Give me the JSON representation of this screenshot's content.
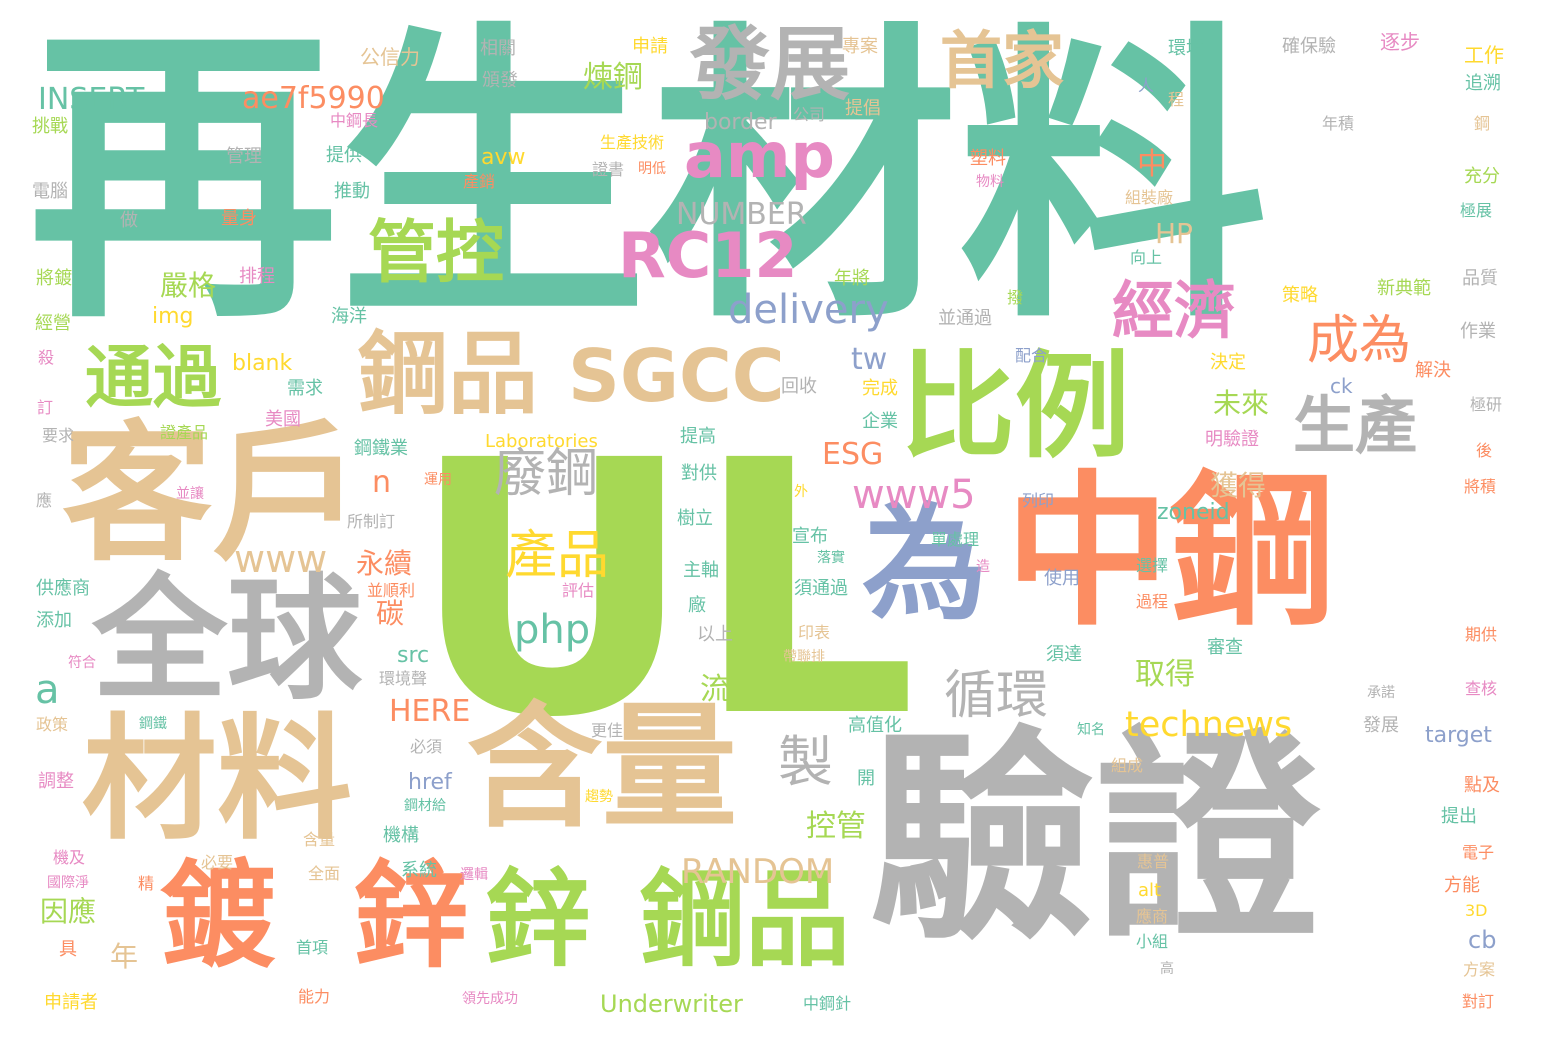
{
  "cloud": {
    "colors": {
      "teal": "#66c2a5",
      "green": "#a6d854",
      "gray": "#b3b3b3",
      "orange": "#fc8d62",
      "tan": "#e5c494",
      "blue": "#8da0cb",
      "pink": "#e78ac3",
      "yellow": "#ffd92f"
    },
    "words": [
      {
        "t": "再生材料",
        "c": "teal"
      },
      {
        "t": "UL",
        "c": "green"
      },
      {
        "t": "中鋼",
        "c": "orange"
      },
      {
        "t": "驗證",
        "c": "gray"
      },
      {
        "t": "客戶",
        "c": "tan"
      },
      {
        "t": "全球",
        "c": "gray"
      },
      {
        "t": "材料",
        "c": "tan"
      },
      {
        "t": "含量",
        "c": "tan"
      },
      {
        "t": "比例",
        "c": "green"
      },
      {
        "t": "為",
        "c": "blue"
      },
      {
        "t": "鍍",
        "c": "orange"
      },
      {
        "t": "鋅",
        "c": "orange"
      },
      {
        "t": "鋅",
        "c": "green"
      },
      {
        "t": "鋼品",
        "c": "green"
      },
      {
        "t": "鋼品",
        "c": "tan"
      },
      {
        "t": "SGCC",
        "c": "tan"
      },
      {
        "t": "發展",
        "c": "gray"
      },
      {
        "t": "首家",
        "c": "tan"
      },
      {
        "t": "amp",
        "c": "pink"
      },
      {
        "t": "RC12",
        "c": "pink"
      },
      {
        "t": "管控",
        "c": "green"
      },
      {
        "t": "通過",
        "c": "green"
      },
      {
        "t": "經濟",
        "c": "pink"
      },
      {
        "t": "生產",
        "c": "gray"
      },
      {
        "t": "成為",
        "c": "orange"
      },
      {
        "t": "製",
        "c": "gray"
      },
      {
        "t": "循環",
        "c": "gray"
      },
      {
        "t": "廢鋼",
        "c": "gray"
      },
      {
        "t": "產品",
        "c": "yellow"
      },
      {
        "t": "www5",
        "c": "pink"
      },
      {
        "t": "delivery",
        "c": "blue"
      },
      {
        "t": "technews",
        "c": "yellow"
      },
      {
        "t": "www",
        "c": "tan"
      },
      {
        "t": "php",
        "c": "teal"
      },
      {
        "t": "ae7f5990",
        "c": "orange"
      },
      {
        "t": "INSERT",
        "c": "teal"
      },
      {
        "t": "NUMBER",
        "c": "gray"
      },
      {
        "t": "RANDOM",
        "c": "tan"
      },
      {
        "t": "HERE",
        "c": "orange"
      },
      {
        "t": "Underwriter",
        "c": "green"
      },
      {
        "t": "Laboratories",
        "c": "yellow"
      },
      {
        "t": "a",
        "c": "teal"
      },
      {
        "t": "n",
        "c": "orange"
      },
      {
        "t": "tw",
        "c": "blue"
      },
      {
        "t": "ESG",
        "c": "orange"
      },
      {
        "t": "HP",
        "c": "tan"
      },
      {
        "t": "中",
        "c": "orange"
      },
      {
        "t": "煉鋼",
        "c": "green"
      },
      {
        "t": "嚴格",
        "c": "green"
      },
      {
        "t": "未來",
        "c": "green"
      },
      {
        "t": "獲得",
        "c": "tan"
      },
      {
        "t": "永續",
        "c": "orange"
      },
      {
        "t": "碳",
        "c": "orange"
      },
      {
        "t": "流程",
        "c": "green"
      },
      {
        "t": "取得",
        "c": "green"
      },
      {
        "t": "控管",
        "c": "green"
      },
      {
        "t": "因應",
        "c": "green"
      },
      {
        "t": "年",
        "c": "tan"
      },
      {
        "t": "cb",
        "c": "blue"
      },
      {
        "t": "zoneid",
        "c": "teal"
      },
      {
        "t": "target",
        "c": "blue"
      },
      {
        "t": "img",
        "c": "yellow"
      },
      {
        "t": "blank",
        "c": "yellow"
      },
      {
        "t": "avw",
        "c": "yellow"
      },
      {
        "t": "border",
        "c": "gray"
      },
      {
        "t": "src",
        "c": "teal"
      },
      {
        "t": "href",
        "c": "blue"
      },
      {
        "t": "alt",
        "c": "yellow"
      },
      {
        "t": "ck",
        "c": "blue"
      },
      {
        "t": "3D",
        "c": "yellow"
      },
      {
        "t": "公信力",
        "c": "tan"
      },
      {
        "t": "相關",
        "c": "gray"
      },
      {
        "t": "頒發",
        "c": "gray"
      },
      {
        "t": "申請",
        "c": "yellow"
      },
      {
        "t": "專案",
        "c": "tan"
      },
      {
        "t": "提倡",
        "c": "tan"
      },
      {
        "t": "公司",
        "c": "gray"
      },
      {
        "t": "中鋼長",
        "c": "pink"
      },
      {
        "t": "環境",
        "c": "teal"
      },
      {
        "t": "確保驗",
        "c": "gray"
      },
      {
        "t": "逐步",
        "c": "pink"
      },
      {
        "t": "工作",
        "c": "yellow"
      },
      {
        "t": "追溯",
        "c": "teal"
      },
      {
        "t": "人",
        "c": "blue"
      },
      {
        "t": "程",
        "c": "tan"
      },
      {
        "t": "年積",
        "c": "gray"
      },
      {
        "t": "鋼",
        "c": "tan"
      },
      {
        "t": "挑戰",
        "c": "green"
      },
      {
        "t": "管理",
        "c": "gray"
      },
      {
        "t": "提供",
        "c": "teal"
      },
      {
        "t": "生產技術",
        "c": "yellow"
      },
      {
        "t": "證書",
        "c": "gray"
      },
      {
        "t": "明低",
        "c": "orange"
      },
      {
        "t": "產銷",
        "c": "orange"
      },
      {
        "t": "塑料",
        "c": "orange"
      },
      {
        "t": "物料",
        "c": "pink"
      },
      {
        "t": "充分",
        "c": "green"
      },
      {
        "t": "電腦",
        "c": "gray"
      },
      {
        "t": "推動",
        "c": "teal"
      },
      {
        "t": "做",
        "c": "gray"
      },
      {
        "t": "量身",
        "c": "orange"
      },
      {
        "t": "組裝廠",
        "c": "tan"
      },
      {
        "t": "極展",
        "c": "teal"
      },
      {
        "t": "將鍍",
        "c": "green"
      },
      {
        "t": "排程",
        "c": "pink"
      },
      {
        "t": "年將",
        "c": "green"
      },
      {
        "t": "向上",
        "c": "teal"
      },
      {
        "t": "品質",
        "c": "gray"
      },
      {
        "t": "撥",
        "c": "green"
      },
      {
        "t": "策略",
        "c": "yellow"
      },
      {
        "t": "新典範",
        "c": "green"
      },
      {
        "t": "經營",
        "c": "green"
      },
      {
        "t": "海洋",
        "c": "teal"
      },
      {
        "t": "並通過",
        "c": "gray"
      },
      {
        "t": "作業",
        "c": "gray"
      },
      {
        "t": "殺",
        "c": "pink"
      },
      {
        "t": "配合",
        "c": "blue"
      },
      {
        "t": "需求",
        "c": "teal"
      },
      {
        "t": "決定",
        "c": "yellow"
      },
      {
        "t": "解決",
        "c": "orange"
      },
      {
        "t": "訂",
        "c": "pink"
      },
      {
        "t": "美國",
        "c": "pink"
      },
      {
        "t": "回收",
        "c": "gray"
      },
      {
        "t": "完成",
        "c": "yellow"
      },
      {
        "t": "極研",
        "c": "gray"
      },
      {
        "t": "要求",
        "c": "gray"
      },
      {
        "t": "證產品",
        "c": "green"
      },
      {
        "t": "鋼鐵業",
        "c": "teal"
      },
      {
        "t": "企業",
        "c": "teal"
      },
      {
        "t": "提高",
        "c": "teal"
      },
      {
        "t": "明驗證",
        "c": "pink"
      },
      {
        "t": "後",
        "c": "orange"
      },
      {
        "t": "應",
        "c": "gray"
      },
      {
        "t": "運用",
        "c": "orange"
      },
      {
        "t": "對供",
        "c": "teal"
      },
      {
        "t": "並讓",
        "c": "pink"
      },
      {
        "t": "外",
        "c": "yellow"
      },
      {
        "t": "將積",
        "c": "orange"
      },
      {
        "t": "所制訂",
        "c": "gray"
      },
      {
        "t": "樹立",
        "c": "teal"
      },
      {
        "t": "宣布",
        "c": "teal"
      },
      {
        "t": "單處理",
        "c": "teal"
      },
      {
        "t": "列印",
        "c": "blue"
      },
      {
        "t": "供應商",
        "c": "teal"
      },
      {
        "t": "並順利",
        "c": "orange"
      },
      {
        "t": "評估",
        "c": "pink"
      },
      {
        "t": "主軸",
        "c": "teal"
      },
      {
        "t": "落實",
        "c": "teal"
      },
      {
        "t": "造",
        "c": "pink"
      },
      {
        "t": "須通過",
        "c": "teal"
      },
      {
        "t": "使用",
        "c": "blue"
      },
      {
        "t": "選擇",
        "c": "teal"
      },
      {
        "t": "添加",
        "c": "teal"
      },
      {
        "t": "廠",
        "c": "teal"
      },
      {
        "t": "過程",
        "c": "orange"
      },
      {
        "t": "以上",
        "c": "gray"
      },
      {
        "t": "印表",
        "c": "tan"
      },
      {
        "t": "期供",
        "c": "orange"
      },
      {
        "t": "符合",
        "c": "pink"
      },
      {
        "t": "帶聯排",
        "c": "tan"
      },
      {
        "t": "須達",
        "c": "teal"
      },
      {
        "t": "審查",
        "c": "teal"
      },
      {
        "t": "環境聲",
        "c": "gray"
      },
      {
        "t": "承諾",
        "c": "gray"
      },
      {
        "t": "查核",
        "c": "pink"
      },
      {
        "t": "政策",
        "c": "tan"
      },
      {
        "t": "鋼鐵",
        "c": "teal"
      },
      {
        "t": "高值化",
        "c": "teal"
      },
      {
        "t": "更佳",
        "c": "gray"
      },
      {
        "t": "發展",
        "c": "gray"
      },
      {
        "t": "知名",
        "c": "teal"
      },
      {
        "t": "必須",
        "c": "gray"
      },
      {
        "t": "調整",
        "c": "pink"
      },
      {
        "t": "開",
        "c": "teal"
      },
      {
        "t": "組成",
        "c": "tan"
      },
      {
        "t": "點及",
        "c": "orange"
      },
      {
        "t": "鋼材給",
        "c": "teal"
      },
      {
        "t": "趨勢",
        "c": "yellow"
      },
      {
        "t": "提出",
        "c": "teal"
      },
      {
        "t": "機及",
        "c": "pink"
      },
      {
        "t": "含量",
        "c": "tan"
      },
      {
        "t": "機構",
        "c": "teal"
      },
      {
        "t": "電子",
        "c": "orange"
      },
      {
        "t": "必要",
        "c": "tan"
      },
      {
        "t": "系統",
        "c": "teal"
      },
      {
        "t": "惠普",
        "c": "tan"
      },
      {
        "t": "國際淨",
        "c": "pink"
      },
      {
        "t": "精",
        "c": "orange"
      },
      {
        "t": "全面",
        "c": "tan"
      },
      {
        "t": "邏輯",
        "c": "pink"
      },
      {
        "t": "方能",
        "c": "orange"
      },
      {
        "t": "應商",
        "c": "tan"
      },
      {
        "t": "具",
        "c": "orange"
      },
      {
        "t": "首項",
        "c": "teal"
      },
      {
        "t": "小組",
        "c": "teal"
      },
      {
        "t": "方案",
        "c": "tan"
      },
      {
        "t": "高",
        "c": "gray"
      },
      {
        "t": "申請者",
        "c": "yellow"
      },
      {
        "t": "能力",
        "c": "orange"
      },
      {
        "t": "領先成功",
        "c": "pink"
      },
      {
        "t": "中鋼針",
        "c": "teal"
      },
      {
        "t": "對訂",
        "c": "orange"
      }
    ]
  }
}
